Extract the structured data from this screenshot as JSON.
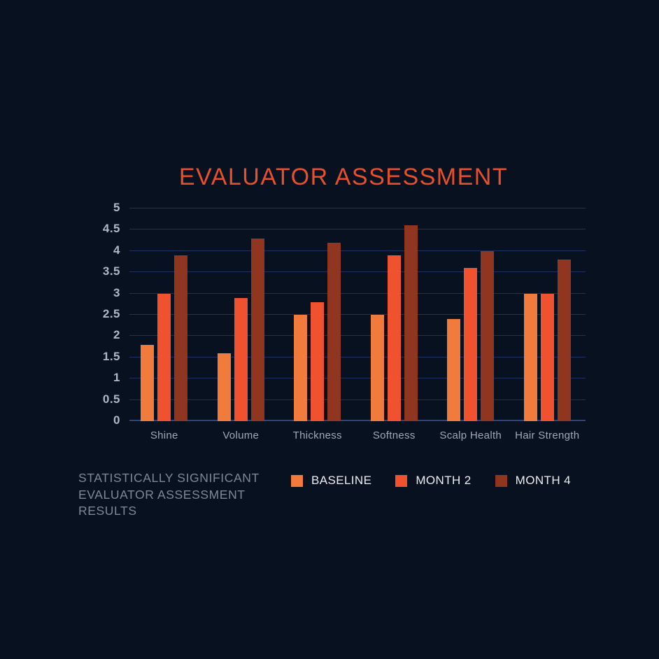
{
  "page": {
    "background": "#071120"
  },
  "chart_data": {
    "type": "bar",
    "title": "EVALUATOR ASSESSMENT",
    "title_color": "#E8502B",
    "categories": [
      "Shine",
      "Volume",
      "Thickness",
      "Softness",
      "Scalp Health",
      "Hair Strength"
    ],
    "series": [
      {
        "name": "BASELINE",
        "color": "#F07B3C",
        "values": [
          1.8,
          1.6,
          2.5,
          2.5,
          2.4,
          3.0
        ]
      },
      {
        "name": "MONTH 2",
        "color": "#F05230",
        "values": [
          3.0,
          2.9,
          2.8,
          3.9,
          3.6,
          3.0
        ]
      },
      {
        "name": "MONTH 4",
        "color": "#8F3520",
        "values": [
          3.9,
          4.3,
          4.2,
          4.6,
          4.0,
          3.8
        ]
      }
    ],
    "xlabel": "",
    "ylabel": "",
    "ylim": [
      0,
      5
    ],
    "ytick_step": 0.5,
    "ytick_labels": [
      "0",
      "0.5",
      "1",
      "1.5",
      "2",
      "2.5",
      "3",
      "3.5",
      "4",
      "4.5",
      "5"
    ],
    "grid": "horizontal",
    "legend_position": "bottom",
    "colors": {
      "grid": "#1D3060",
      "zero_line": "#2E4478",
      "y_label": "#ACB9C7",
      "x_label": "#9DAAB8"
    }
  },
  "caption": {
    "lines": [
      "STATISTICALLY SIGNIFICANT",
      "EVALUATOR ASSESSMENT",
      "RESULTS"
    ],
    "color": "#7E8995"
  },
  "legend": {
    "text_color": "#EDEFF2"
  }
}
